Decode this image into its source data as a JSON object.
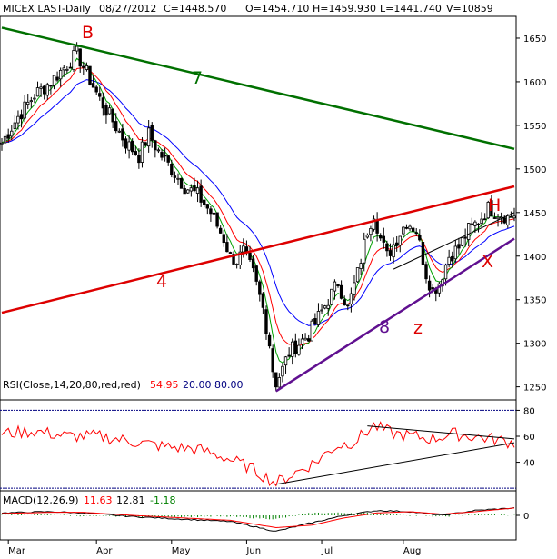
{
  "header": {
    "symbol": "MICEX LAST-Daily",
    "date": "08/27/2012",
    "close": "C=1448.570",
    "open": "O=1454.710",
    "high": "H=1459.930",
    "low": "L=1441.740",
    "volume": "V=10859"
  },
  "annotations": {
    "B": "B",
    "H": "H",
    "X": "X",
    "Z": "z",
    "line4": "4",
    "line7": "7",
    "line8": "8"
  },
  "colors": {
    "frame": "#000000",
    "candle": "#000000",
    "greenMA": "#00a000",
    "redMA": "#ff0000",
    "blueMA": "#0000ff",
    "trendGreen": "#007000",
    "trendRed": "#dd0000",
    "trendPurple": "#601090",
    "rsiLine": "#ff0000",
    "macdLine": "#000000",
    "signalLine": "#ff0000",
    "histogram": "#008000",
    "level": "#000080"
  },
  "chart_data": [
    {
      "type": "candlestick",
      "title": "MICEX LAST-Daily",
      "months": [
        "Mar",
        "Apr",
        "May",
        "Jun",
        "Jul",
        "Aug"
      ],
      "yticks": [
        1250,
        1300,
        1350,
        1400,
        1450,
        1500,
        1550,
        1600,
        1650
      ],
      "ylim": [
        1235,
        1675
      ],
      "close_path": [
        [
          0,
          1530
        ],
        [
          5,
          1560
        ],
        [
          10,
          1585
        ],
        [
          15,
          1600
        ],
        [
          20,
          1620
        ],
        [
          23,
          1632
        ],
        [
          26,
          1610
        ],
        [
          30,
          1580
        ],
        [
          34,
          1555
        ],
        [
          38,
          1530
        ],
        [
          42,
          1515
        ],
        [
          45,
          1540
        ],
        [
          48,
          1520
        ],
        [
          52,
          1500
        ],
        [
          56,
          1480
        ],
        [
          60,
          1470
        ],
        [
          64,
          1450
        ],
        [
          68,
          1420
        ],
        [
          70,
          1400
        ],
        [
          72,
          1395
        ],
        [
          74,
          1405
        ],
        [
          77,
          1380
        ],
        [
          80,
          1340
        ],
        [
          82,
          1300
        ],
        [
          83,
          1270
        ],
        [
          84,
          1255
        ],
        [
          86,
          1270
        ],
        [
          88,
          1290
        ],
        [
          91,
          1300
        ],
        [
          94,
          1310
        ],
        [
          97,
          1330
        ],
        [
          100,
          1350
        ],
        [
          103,
          1370
        ],
        [
          106,
          1340
        ],
        [
          109,
          1380
        ],
        [
          112,
          1430
        ],
        [
          114,
          1450
        ],
        [
          116,
          1420
        ],
        [
          118,
          1400
        ],
        [
          121,
          1420
        ],
        [
          124,
          1440
        ],
        [
          127,
          1430
        ],
        [
          130,
          1380
        ],
        [
          132,
          1360
        ],
        [
          134,
          1370
        ],
        [
          137,
          1400
        ],
        [
          140,
          1410
        ],
        [
          143,
          1430
        ],
        [
          146,
          1440
        ],
        [
          149,
          1455
        ],
        [
          152,
          1450
        ],
        [
          155,
          1445
        ],
        [
          157,
          1448
        ]
      ],
      "trendlines": [
        {
          "label": "7",
          "from": [
            0,
            1662
          ],
          "to": [
            157,
            1523
          ]
        },
        {
          "label": "4",
          "from": [
            0,
            1335
          ],
          "to": [
            157,
            1480
          ]
        },
        {
          "label": "8",
          "from": [
            84,
            1245
          ],
          "to": [
            157,
            1420
          ]
        },
        {
          "label": "",
          "from": [
            120,
            1385
          ],
          "to": [
            157,
            1450
          ]
        }
      ]
    },
    {
      "type": "line",
      "title": "RSI(Close,14,20,80,red,red)",
      "value": "54.95",
      "lower": "20.00",
      "upper": "80.00",
      "yticks": [
        40,
        60,
        80
      ],
      "ylim": [
        18,
        88
      ],
      "series_path": [
        [
          0,
          62
        ],
        [
          10,
          64
        ],
        [
          20,
          60
        ],
        [
          30,
          60
        ],
        [
          40,
          56
        ],
        [
          50,
          52
        ],
        [
          60,
          50
        ],
        [
          68,
          44
        ],
        [
          76,
          36
        ],
        [
          84,
          24
        ],
        [
          90,
          32
        ],
        [
          96,
          40
        ],
        [
          102,
          52
        ],
        [
          108,
          56
        ],
        [
          114,
          68
        ],
        [
          120,
          62
        ],
        [
          126,
          60
        ],
        [
          132,
          58
        ],
        [
          138,
          62
        ],
        [
          144,
          60
        ],
        [
          150,
          58
        ],
        [
          157,
          55
        ]
      ],
      "trendlines": [
        {
          "from": [
            84,
            23
          ],
          "to": [
            157,
            55
          ]
        },
        {
          "from": [
            112,
            68
          ],
          "to": [
            157,
            58
          ]
        }
      ]
    },
    {
      "type": "line",
      "title": "MACD(12,26,9)",
      "macd": "11.63",
      "signal": "12.81",
      "hist": "-1.18",
      "yticks": [
        0
      ],
      "ylim": [
        -40,
        40
      ],
      "macd_path": [
        [
          0,
          4
        ],
        [
          15,
          6
        ],
        [
          25,
          4
        ],
        [
          40,
          -2
        ],
        [
          55,
          -6
        ],
        [
          70,
          -10
        ],
        [
          84,
          -26
        ],
        [
          95,
          -12
        ],
        [
          105,
          0
        ],
        [
          115,
          8
        ],
        [
          125,
          6
        ],
        [
          135,
          0
        ],
        [
          145,
          8
        ],
        [
          157,
          12
        ]
      ],
      "signal_path": [
        [
          0,
          3
        ],
        [
          15,
          5
        ],
        [
          25,
          5
        ],
        [
          40,
          0
        ],
        [
          55,
          -4
        ],
        [
          70,
          -8
        ],
        [
          84,
          -20
        ],
        [
          95,
          -16
        ],
        [
          105,
          -4
        ],
        [
          115,
          4
        ],
        [
          125,
          6
        ],
        [
          135,
          2
        ],
        [
          145,
          6
        ],
        [
          157,
          12
        ]
      ]
    }
  ]
}
